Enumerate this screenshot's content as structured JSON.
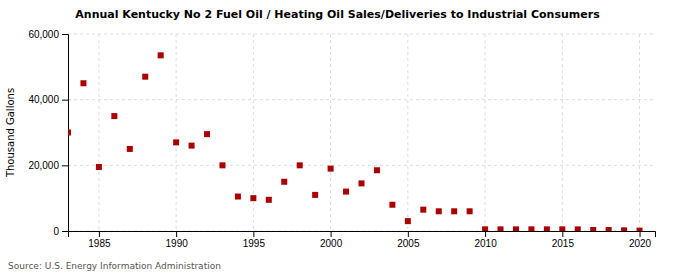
{
  "chart_data": {
    "type": "scatter",
    "title": "Annual Kentucky No 2 Fuel Oil / Heating Oil Sales/Deliveries to Industrial Consumers",
    "ylabel": "Thousand Gallons",
    "source": "Source: U.S. Energy Information Administration",
    "color": "#aa0000",
    "marker": "square",
    "grid": true,
    "xlim": [
      1983,
      2021
    ],
    "ylim": [
      0,
      60000
    ],
    "xticks": [
      1985,
      1990,
      1995,
      2000,
      2005,
      2010,
      2015,
      2020
    ],
    "yticks": [
      0,
      {
        "value": 20000,
        "label": "20,000"
      },
      {
        "value": 40000,
        "label": "40,000"
      },
      {
        "value": 60000,
        "label": "60,000"
      }
    ],
    "x": [
      1983,
      1984,
      1985,
      1986,
      1987,
      1988,
      1989,
      1990,
      1991,
      1992,
      1993,
      1994,
      1995,
      1996,
      1997,
      1998,
      1999,
      2000,
      2001,
      2002,
      2003,
      2004,
      2005,
      2006,
      2007,
      2008,
      2009,
      2010,
      2011,
      2012,
      2013,
      2014,
      2015,
      2016,
      2017,
      2018,
      2019,
      2020
    ],
    "values": [
      30000,
      45000,
      19500,
      35000,
      25000,
      47000,
      53500,
      27000,
      26000,
      29500,
      20000,
      10500,
      10000,
      9500,
      15000,
      20000,
      11000,
      19000,
      12000,
      14500,
      18500,
      8000,
      3000,
      6500,
      6000,
      6000,
      6000,
      500,
      500,
      500,
      500,
      500,
      500,
      500,
      300,
      300,
      200,
      100
    ]
  }
}
